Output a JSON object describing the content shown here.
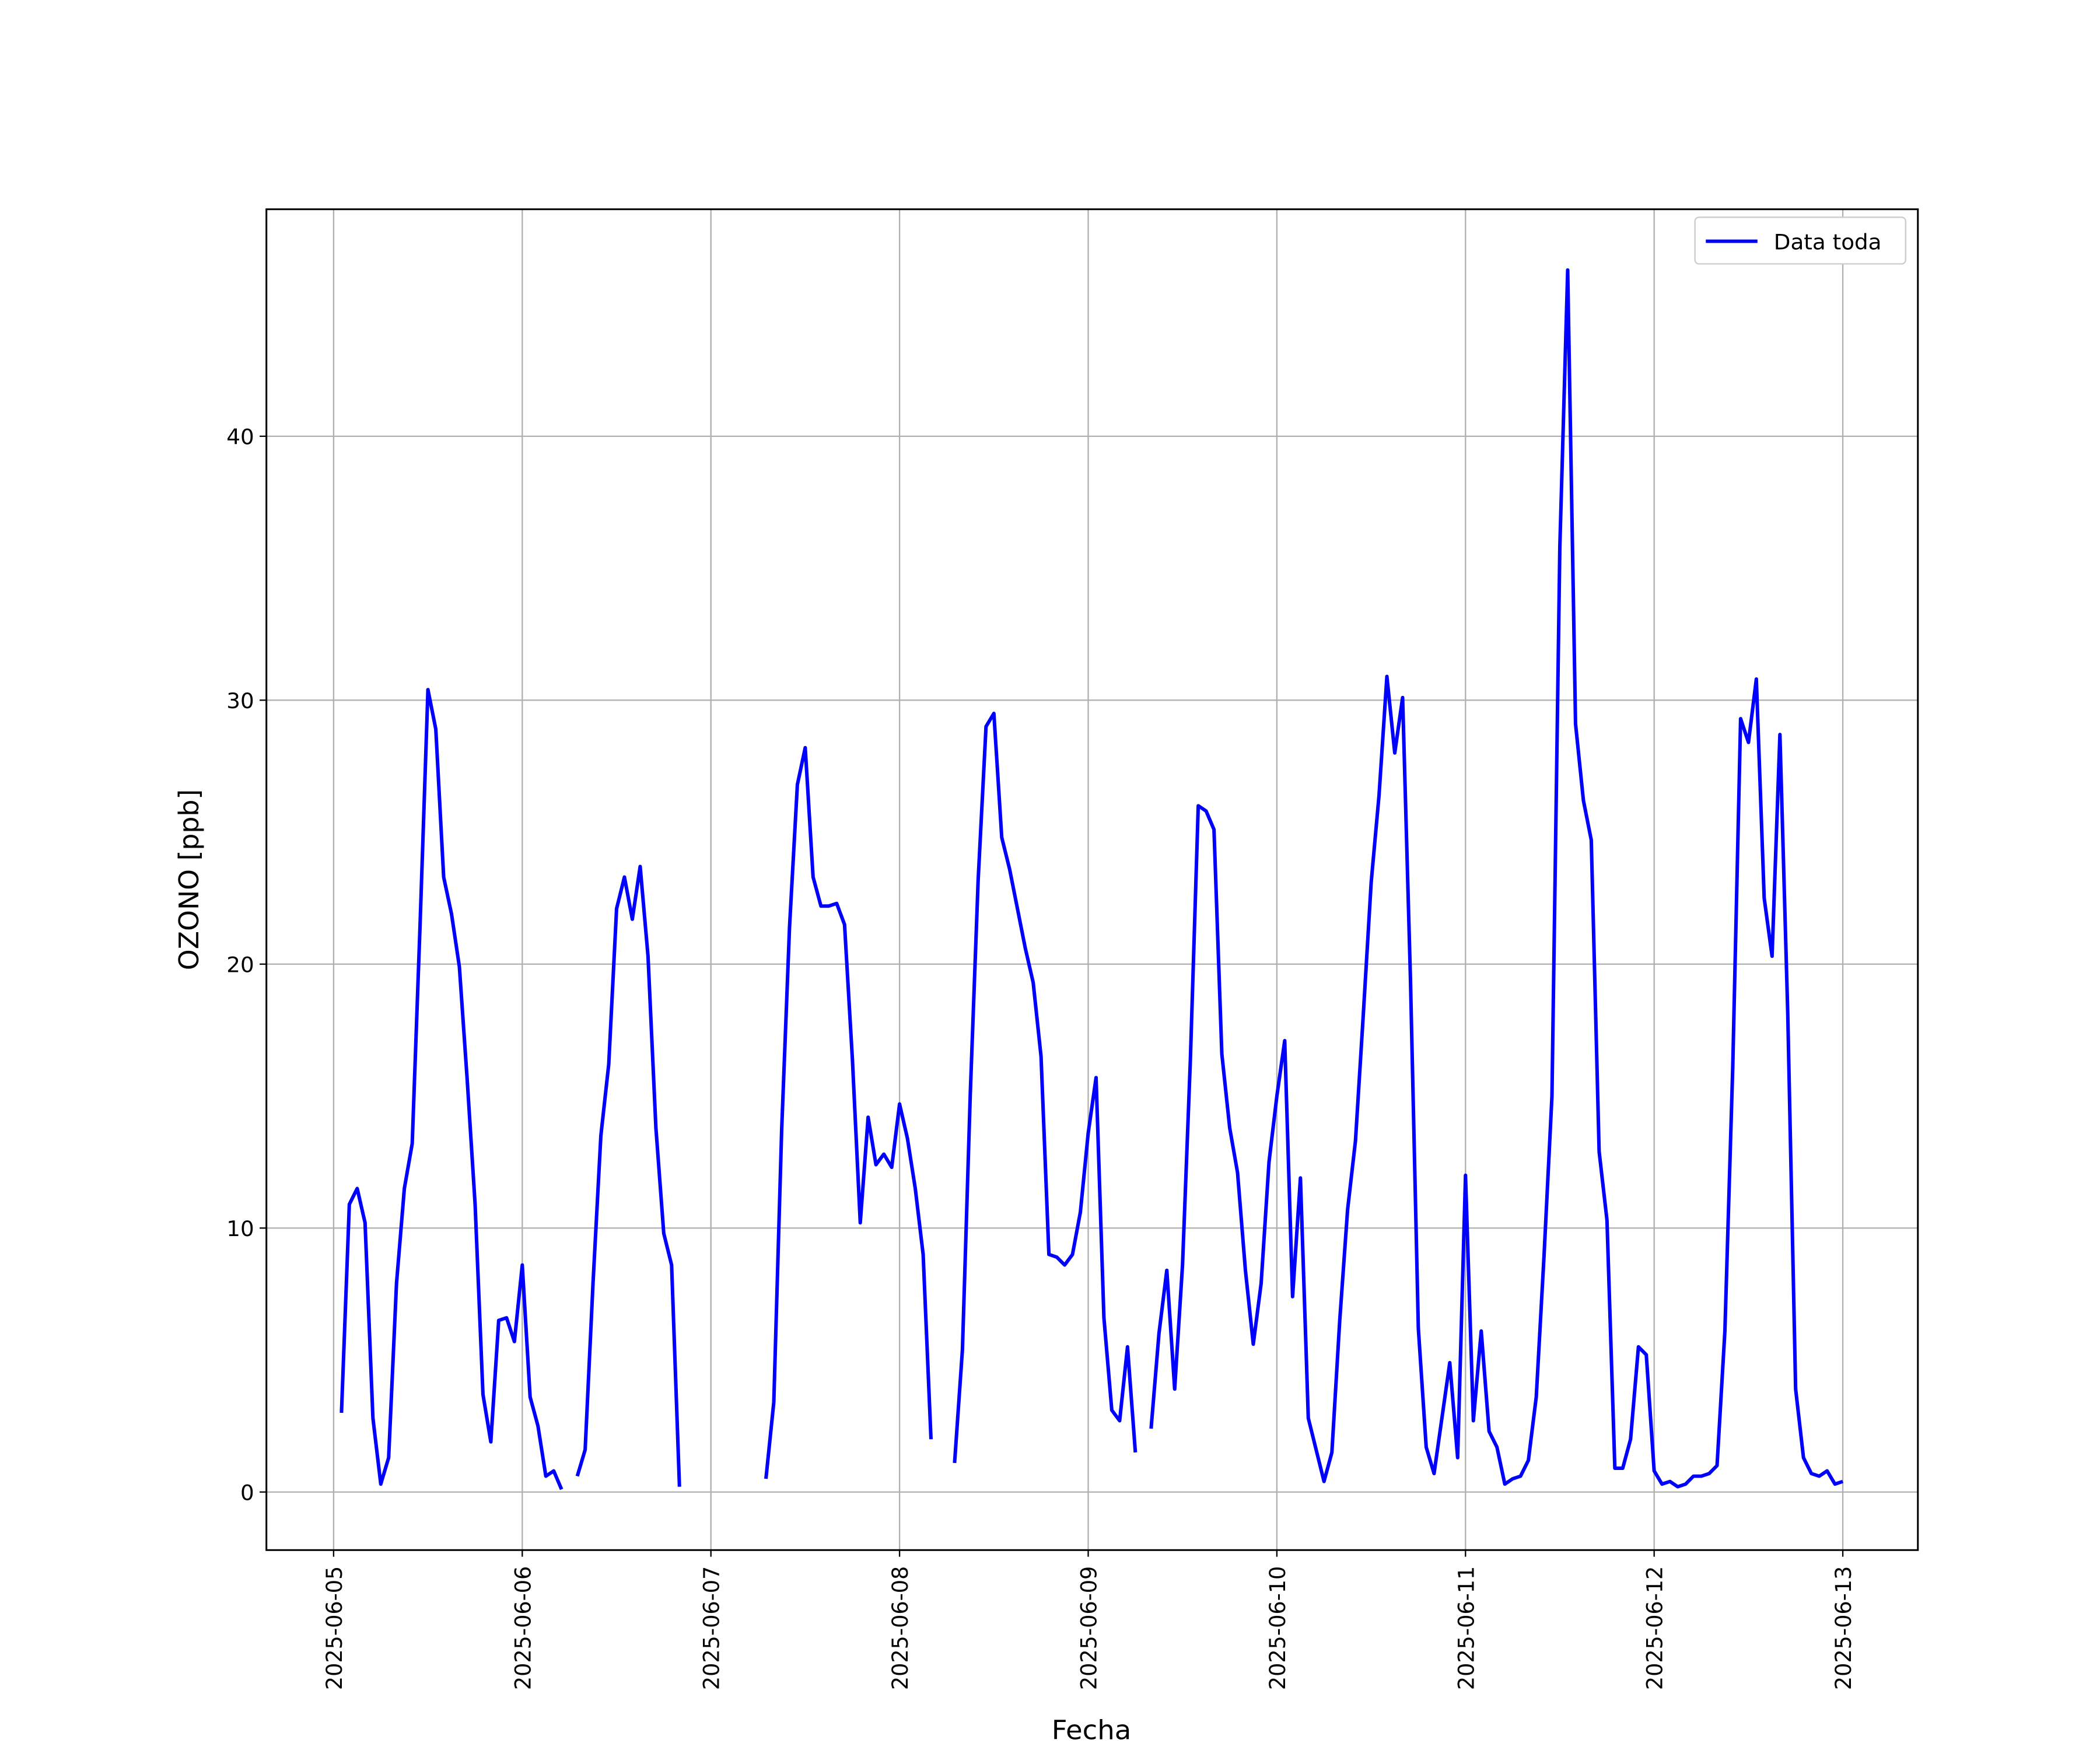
{
  "chart_data": {
    "type": "line",
    "xlabel": "Fecha",
    "ylabel": "OZONO [ppb]",
    "x": [
      "2025-06-05 01:00",
      "2025-06-05 02:00",
      "2025-06-05 03:00",
      "2025-06-05 04:00",
      "2025-06-05 05:00",
      "2025-06-05 06:00",
      "2025-06-05 07:00",
      "2025-06-05 08:00",
      "2025-06-05 09:00",
      "2025-06-05 10:00",
      "2025-06-05 11:00",
      "2025-06-05 12:00",
      "2025-06-05 13:00",
      "2025-06-05 14:00",
      "2025-06-05 15:00",
      "2025-06-05 16:00",
      "2025-06-05 17:00",
      "2025-06-05 18:00",
      "2025-06-05 19:00",
      "2025-06-05 20:00",
      "2025-06-05 21:00",
      "2025-06-05 22:00",
      "2025-06-05 23:00",
      "2025-06-06 00:00",
      "2025-06-06 01:00",
      "2025-06-06 02:00",
      "2025-06-06 03:00",
      "2025-06-06 04:00",
      "2025-06-06 05:00",
      "2025-06-06 06:00",
      "2025-06-06 07:00",
      "2025-06-06 08:00",
      "2025-06-06 09:00",
      "2025-06-06 10:00",
      "2025-06-06 11:00",
      "2025-06-06 12:00",
      "2025-06-06 13:00",
      "2025-06-06 14:00",
      "2025-06-06 15:00",
      "2025-06-06 16:00",
      "2025-06-06 17:00",
      "2025-06-06 18:00",
      "2025-06-06 19:00",
      "2025-06-06 20:00",
      "2025-06-06 21:00",
      "2025-06-07 07:00",
      "2025-06-07 08:00",
      "2025-06-07 09:00",
      "2025-06-07 10:00",
      "2025-06-07 11:00",
      "2025-06-07 12:00",
      "2025-06-07 13:00",
      "2025-06-07 14:00",
      "2025-06-07 15:00",
      "2025-06-07 16:00",
      "2025-06-07 17:00",
      "2025-06-07 18:00",
      "2025-06-07 19:00",
      "2025-06-07 20:00",
      "2025-06-07 21:00",
      "2025-06-07 22:00",
      "2025-06-07 23:00",
      "2025-06-08 00:00",
      "2025-06-08 01:00",
      "2025-06-08 02:00",
      "2025-06-08 03:00",
      "2025-06-08 04:00",
      "2025-06-08 05:00",
      "2025-06-08 07:00",
      "2025-06-08 08:00",
      "2025-06-08 09:00",
      "2025-06-08 10:00",
      "2025-06-08 11:00",
      "2025-06-08 12:00",
      "2025-06-08 13:00",
      "2025-06-08 14:00",
      "2025-06-08 15:00",
      "2025-06-08 16:00",
      "2025-06-08 17:00",
      "2025-06-08 18:00",
      "2025-06-08 19:00",
      "2025-06-08 20:00",
      "2025-06-08 21:00",
      "2025-06-08 22:00",
      "2025-06-08 23:00",
      "2025-06-09 00:00",
      "2025-06-09 01:00",
      "2025-06-09 02:00",
      "2025-06-09 03:00",
      "2025-06-09 04:00",
      "2025-06-09 05:00",
      "2025-06-09 06:00",
      "2025-06-09 07:00",
      "2025-06-09 08:00",
      "2025-06-09 09:00",
      "2025-06-09 10:00",
      "2025-06-09 11:00",
      "2025-06-09 12:00",
      "2025-06-09 13:00",
      "2025-06-09 14:00",
      "2025-06-09 15:00",
      "2025-06-09 16:00",
      "2025-06-09 17:00",
      "2025-06-09 18:00",
      "2025-06-09 19:00",
      "2025-06-09 20:00",
      "2025-06-09 21:00",
      "2025-06-09 22:00",
      "2025-06-09 23:00",
      "2025-06-10 00:00",
      "2025-06-10 01:00",
      "2025-06-10 02:00",
      "2025-06-10 03:00",
      "2025-06-10 04:00",
      "2025-06-10 05:00",
      "2025-06-10 06:00",
      "2025-06-10 07:00",
      "2025-06-10 08:00",
      "2025-06-10 09:00",
      "2025-06-10 10:00",
      "2025-06-10 11:00",
      "2025-06-10 12:00",
      "2025-06-10 13:00",
      "2025-06-10 14:00",
      "2025-06-10 15:00",
      "2025-06-10 16:00",
      "2025-06-10 17:00",
      "2025-06-10 18:00",
      "2025-06-10 19:00",
      "2025-06-10 20:00",
      "2025-06-10 21:00",
      "2025-06-10 22:00",
      "2025-06-10 23:00",
      "2025-06-11 00:00",
      "2025-06-11 01:00",
      "2025-06-11 02:00",
      "2025-06-11 03:00",
      "2025-06-11 04:00",
      "2025-06-11 05:00",
      "2025-06-11 06:00",
      "2025-06-11 07:00",
      "2025-06-11 08:00",
      "2025-06-11 09:00",
      "2025-06-11 10:00",
      "2025-06-11 11:00",
      "2025-06-11 12:00",
      "2025-06-11 13:00",
      "2025-06-11 14:00",
      "2025-06-11 15:00",
      "2025-06-11 16:00",
      "2025-06-11 17:00",
      "2025-06-11 18:00",
      "2025-06-11 19:00",
      "2025-06-11 20:00",
      "2025-06-11 21:00",
      "2025-06-11 22:00",
      "2025-06-11 23:00",
      "2025-06-12 00:00",
      "2025-06-12 01:00",
      "2025-06-12 02:00",
      "2025-06-12 03:00",
      "2025-06-12 04:00",
      "2025-06-12 05:00",
      "2025-06-12 06:00",
      "2025-06-12 07:00",
      "2025-06-12 08:00",
      "2025-06-12 09:00",
      "2025-06-12 10:00",
      "2025-06-12 11:00",
      "2025-06-12 12:00",
      "2025-06-12 13:00",
      "2025-06-12 14:00",
      "2025-06-12 15:00",
      "2025-06-12 16:00",
      "2025-06-12 17:00",
      "2025-06-12 18:00",
      "2025-06-12 19:00",
      "2025-06-12 20:00",
      "2025-06-12 21:00",
      "2025-06-12 22:00",
      "2025-06-12 23:00",
      "2025-06-13 00:00"
    ],
    "series": [
      {
        "name": "Data toda",
        "color": "#0000ff",
        "values": [
          3.0,
          10.9,
          11.5,
          10.2,
          2.8,
          0.3,
          1.3,
          7.9,
          11.5,
          13.2,
          21.5,
          30.4,
          28.9,
          23.3,
          21.9,
          19.9,
          15.6,
          10.9,
          3.7,
          1.9,
          6.5,
          6.6,
          5.7,
          8.6,
          3.6,
          2.5,
          0.6,
          0.8,
          0.1,
          null,
          0.6,
          1.6,
          7.9,
          13.5,
          16.2,
          22.1,
          23.3,
          21.7,
          23.7,
          20.3,
          13.8,
          9.8,
          8.6,
          0.2,
          null,
          0.5,
          3.4,
          13.7,
          21.4,
          26.8,
          28.2,
          23.3,
          22.2,
          22.2,
          22.3,
          21.5,
          16.4,
          10.2,
          14.2,
          12.4,
          12.8,
          12.3,
          14.7,
          13.4,
          11.5,
          9.0,
          2.0,
          null,
          1.1,
          5.4,
          15.1,
          23.2,
          29.0,
          29.5,
          24.8,
          23.6,
          22.1,
          20.6,
          19.3,
          16.5,
          9.0,
          8.9,
          8.6,
          9.0,
          10.6,
          13.6,
          15.7,
          6.6,
          3.1,
          2.7,
          5.5,
          1.5,
          null,
          2.4,
          6.0,
          8.4,
          3.9,
          8.6,
          16.4,
          26.0,
          25.8,
          25.1,
          16.6,
          13.8,
          12.1,
          8.4,
          5.6,
          7.9,
          12.5,
          15.0,
          17.1,
          7.4,
          11.9,
          2.8,
          1.6,
          0.4,
          1.5,
          6.5,
          10.7,
          13.3,
          18.1,
          23.1,
          26.4,
          30.9,
          28.0,
          30.1,
          19.4,
          6.2,
          1.7,
          0.7,
          2.8,
          4.9,
          1.3,
          12.0,
          2.7,
          6.1,
          2.3,
          1.7,
          0.3,
          0.5,
          0.6,
          1.2,
          3.6,
          9.0,
          15.0,
          35.8,
          46.3,
          29.1,
          26.2,
          24.7,
          12.9,
          10.3,
          0.9,
          0.9,
          2.0,
          5.5,
          5.2,
          0.8,
          0.3,
          0.4,
          0.2,
          0.3,
          0.6,
          0.6,
          0.7,
          1.0,
          6.1,
          16.1,
          29.3,
          28.4,
          30.8,
          22.5,
          20.3,
          28.7,
          18.1,
          3.9,
          1.3,
          0.7,
          0.6,
          0.8,
          0.3,
          0.4
        ]
      }
    ],
    "xlim": [
      "2025-06-04 15:27",
      "2025-06-13 09:33"
    ],
    "xticks": [
      "2025-06-05",
      "2025-06-06",
      "2025-06-07",
      "2025-06-08",
      "2025-06-09",
      "2025-06-10",
      "2025-06-11",
      "2025-06-12",
      "2025-06-13"
    ],
    "ylim": [
      -2.2,
      48.6
    ],
    "yticks": [
      0,
      10,
      20,
      30,
      40
    ],
    "grid": true,
    "legend": "upper right"
  }
}
